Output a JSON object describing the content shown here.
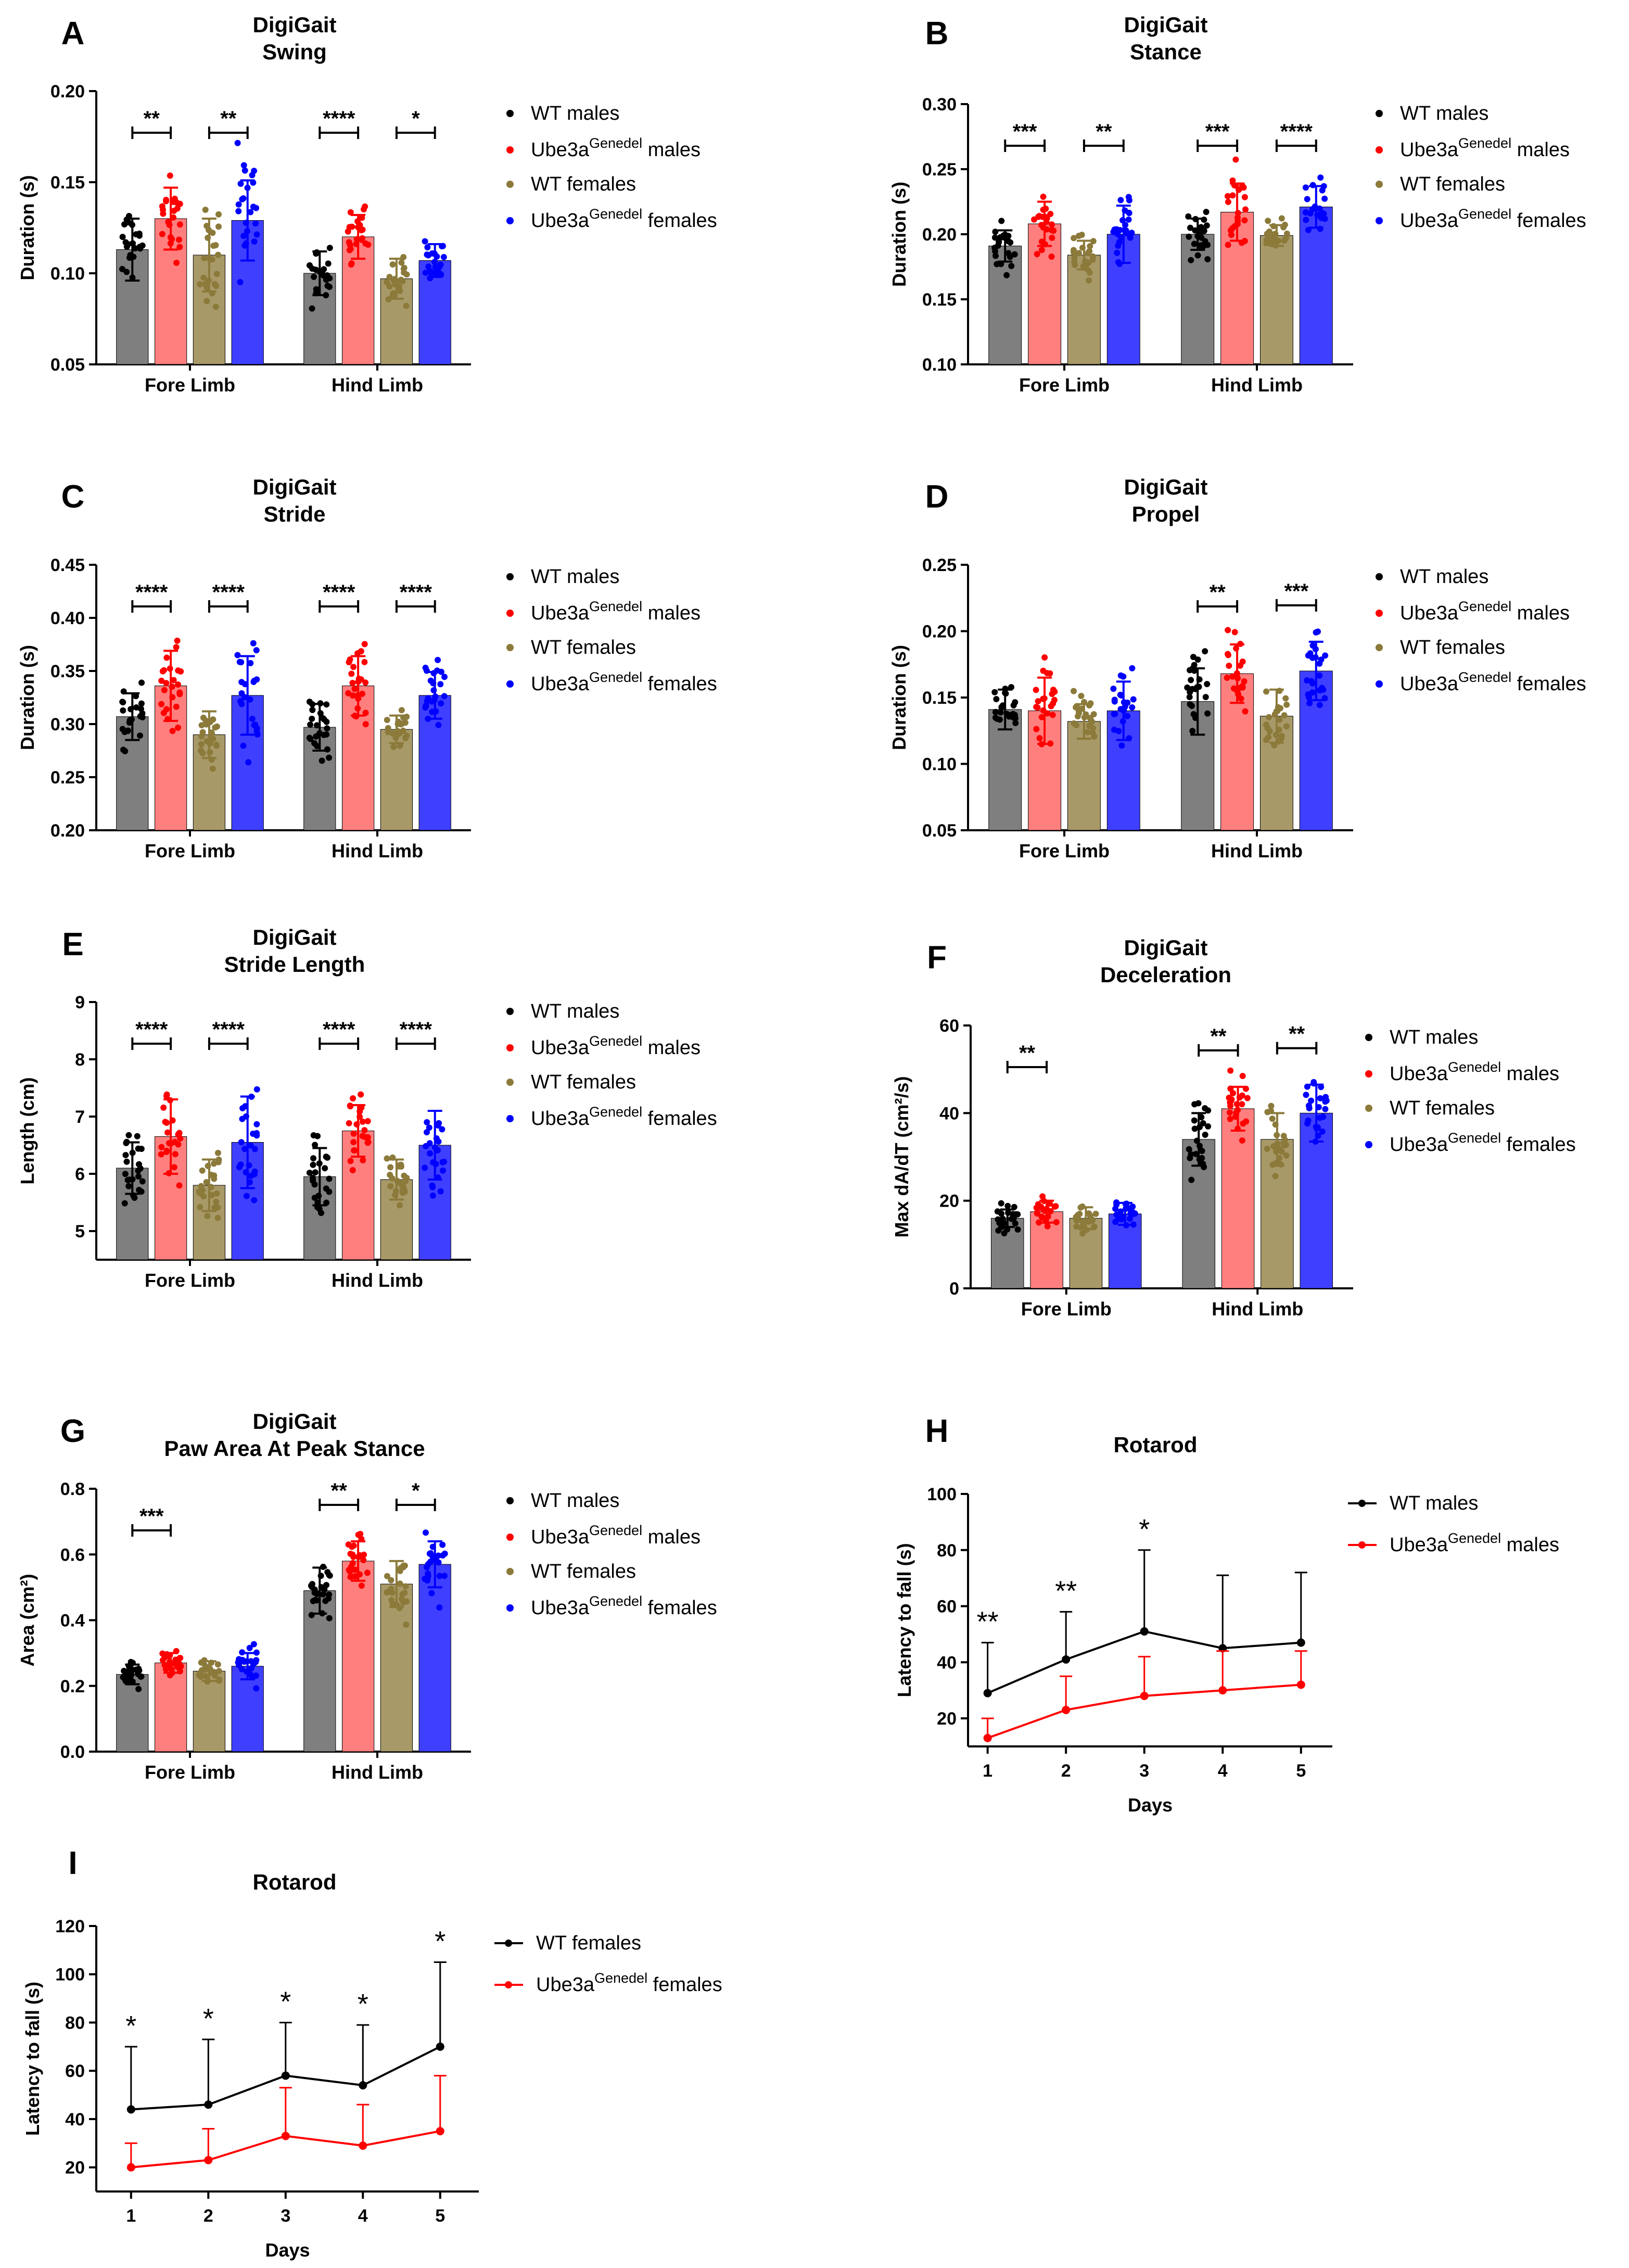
{
  "colors": {
    "wt_males": "#7f7f7f",
    "mut_males": "#ff7f7f",
    "wt_females": "#a89968",
    "mut_females": "#3f3fff",
    "wt_males_dot": "#000000",
    "mut_males_dot": "#ff0000",
    "wt_females_dot": "#8b7a3a",
    "mut_females_dot": "#0000ff",
    "line_black": "#000000",
    "line_red": "#ff0000"
  },
  "legend_labels": {
    "wt_males": "WT males",
    "mut_prefix": "Ube3a",
    "mut_sup": "Genedel",
    "males_suffix": " males",
    "females_suffix": " females",
    "wt_females": "WT females"
  },
  "chart_data": [
    {
      "id": "A",
      "panel_letter": "A",
      "type": "bar",
      "title": [
        "DigiGait",
        "Swing"
      ],
      "ylabel": "Duration (s)",
      "ylim": [
        0.05,
        0.2
      ],
      "yticks": [
        0.05,
        0.1,
        0.15,
        0.2
      ],
      "ytick_labels": [
        "0.05",
        "0.10",
        "0.15",
        "0.20"
      ],
      "categories": [
        "Fore Limb",
        "Hind Limb"
      ],
      "series": [
        {
          "name": "WT males",
          "key": "wt_males",
          "values": [
            0.113,
            0.1
          ],
          "errors": [
            0.017,
            0.012
          ]
        },
        {
          "name": "Ube3aGenedel males",
          "key": "mut_males",
          "values": [
            0.13,
            0.12
          ],
          "errors": [
            0.017,
            0.012
          ]
        },
        {
          "name": "WT females",
          "key": "wt_females",
          "values": [
            0.11,
            0.097
          ],
          "errors": [
            0.02,
            0.011
          ]
        },
        {
          "name": "Ube3aGenedel females",
          "key": "mut_females",
          "values": [
            0.129,
            0.107
          ],
          "errors": [
            0.022,
            0.009
          ]
        }
      ],
      "significance": [
        {
          "group": 0,
          "from": 0,
          "to": 1,
          "label": "**"
        },
        {
          "group": 0,
          "from": 2,
          "to": 3,
          "label": "**"
        },
        {
          "group": 1,
          "from": 0,
          "to": 1,
          "label": "****"
        },
        {
          "group": 1,
          "from": 2,
          "to": 3,
          "label": "*"
        }
      ]
    },
    {
      "id": "B",
      "panel_letter": "B",
      "type": "bar",
      "title": [
        "DigiGait",
        "Stance"
      ],
      "ylabel": "Duration (s)",
      "ylim": [
        0.1,
        0.3
      ],
      "yticks": [
        0.1,
        0.15,
        0.2,
        0.25,
        0.3
      ],
      "ytick_labels": [
        "0.10",
        "0.15",
        "0.20",
        "0.25",
        "0.30"
      ],
      "categories": [
        "Fore Limb",
        "Hind Limb"
      ],
      "series": [
        {
          "name": "WT males",
          "key": "wt_males",
          "values": [
            0.191,
            0.2
          ],
          "errors": [
            0.012,
            0.012
          ]
        },
        {
          "name": "Ube3aGenedel males",
          "key": "mut_males",
          "values": [
            0.208,
            0.217
          ],
          "errors": [
            0.017,
            0.022
          ]
        },
        {
          "name": "WT females",
          "key": "wt_females",
          "values": [
            0.184,
            0.199
          ],
          "errors": [
            0.011,
            0.008
          ]
        },
        {
          "name": "Ube3aGenedel females",
          "key": "mut_females",
          "values": [
            0.2,
            0.221
          ],
          "errors": [
            0.022,
            0.016
          ]
        }
      ],
      "significance": [
        {
          "group": 0,
          "from": 0,
          "to": 1,
          "label": "***"
        },
        {
          "group": 0,
          "from": 2,
          "to": 3,
          "label": "**"
        },
        {
          "group": 1,
          "from": 0,
          "to": 1,
          "label": "***"
        },
        {
          "group": 1,
          "from": 2,
          "to": 3,
          "label": "****"
        }
      ]
    },
    {
      "id": "C",
      "panel_letter": "C",
      "type": "bar",
      "title": [
        "DigiGait",
        "Stride"
      ],
      "ylabel": "Duration (s)",
      "ylim": [
        0.2,
        0.45
      ],
      "yticks": [
        0.2,
        0.25,
        0.3,
        0.35,
        0.4,
        0.45
      ],
      "ytick_labels": [
        "0.20",
        "0.25",
        "0.30",
        "0.35",
        "0.40",
        "0.45"
      ],
      "categories": [
        "Fore Limb",
        "Hind Limb"
      ],
      "series": [
        {
          "name": "WT males",
          "key": "wt_males",
          "values": [
            0.307,
            0.297
          ],
          "errors": [
            0.022,
            0.022
          ]
        },
        {
          "name": "Ube3aGenedel males",
          "key": "mut_males",
          "values": [
            0.336,
            0.336
          ],
          "errors": [
            0.033,
            0.028
          ]
        },
        {
          "name": "WT females",
          "key": "wt_females",
          "values": [
            0.29,
            0.295
          ],
          "errors": [
            0.022,
            0.013
          ]
        },
        {
          "name": "Ube3aGenedel females",
          "key": "mut_females",
          "values": [
            0.327,
            0.327
          ],
          "errors": [
            0.037,
            0.022
          ]
        }
      ],
      "significance": [
        {
          "group": 0,
          "from": 0,
          "to": 1,
          "label": "****"
        },
        {
          "group": 0,
          "from": 2,
          "to": 3,
          "label": "****"
        },
        {
          "group": 1,
          "from": 0,
          "to": 1,
          "label": "****"
        },
        {
          "group": 1,
          "from": 2,
          "to": 3,
          "label": "****"
        }
      ]
    },
    {
      "id": "D",
      "panel_letter": "D",
      "type": "bar",
      "title": [
        "DigiGait",
        "Propel"
      ],
      "ylabel": "Duration (s)",
      "ylim": [
        0.05,
        0.25
      ],
      "yticks": [
        0.05,
        0.1,
        0.15,
        0.2,
        0.25
      ],
      "ytick_labels": [
        "0.05",
        "0.10",
        "0.15",
        "0.20",
        "0.25"
      ],
      "categories": [
        "Fore Limb",
        "Hind Limb"
      ],
      "series": [
        {
          "name": "WT males",
          "key": "wt_males",
          "values": [
            0.141,
            0.147
          ],
          "errors": [
            0.015,
            0.025
          ]
        },
        {
          "name": "Ube3aGenedel males",
          "key": "mut_males",
          "values": [
            0.14,
            0.168
          ],
          "errors": [
            0.025,
            0.022
          ]
        },
        {
          "name": "WT females",
          "key": "wt_females",
          "values": [
            0.132,
            0.136
          ],
          "errors": [
            0.013,
            0.02
          ]
        },
        {
          "name": "Ube3aGenedel females",
          "key": "mut_females",
          "values": [
            0.14,
            0.17
          ],
          "errors": [
            0.022,
            0.022
          ]
        }
      ],
      "significance": [
        {
          "group": 1,
          "from": 0,
          "to": 1,
          "label": "**"
        },
        {
          "group": 1,
          "from": 2,
          "to": 3,
          "label": "***"
        }
      ]
    },
    {
      "id": "E",
      "panel_letter": "E",
      "type": "bar",
      "title": [
        "DigiGait",
        "Stride Length"
      ],
      "ylabel": "Length (cm)",
      "ylim": [
        4.5,
        9
      ],
      "yticks": [
        5,
        6,
        7,
        8,
        9
      ],
      "ytick_labels": [
        "5",
        "6",
        "7",
        "8",
        "9"
      ],
      "categories": [
        "Fore Limb",
        "Hind Limb"
      ],
      "series": [
        {
          "name": "WT males",
          "key": "wt_males",
          "values": [
            6.1,
            5.95
          ],
          "errors": [
            0.45,
            0.5
          ]
        },
        {
          "name": "Ube3aGenedel males",
          "key": "mut_males",
          "values": [
            6.65,
            6.75
          ],
          "errors": [
            0.65,
            0.45
          ]
        },
        {
          "name": "WT females",
          "key": "wt_females",
          "values": [
            5.8,
            5.9
          ],
          "errors": [
            0.45,
            0.35
          ]
        },
        {
          "name": "Ube3aGenedel females",
          "key": "mut_females",
          "values": [
            6.55,
            6.5
          ],
          "errors": [
            0.8,
            0.6
          ]
        }
      ],
      "significance": [
        {
          "group": 0,
          "from": 0,
          "to": 1,
          "label": "****"
        },
        {
          "group": 0,
          "from": 2,
          "to": 3,
          "label": "****"
        },
        {
          "group": 1,
          "from": 0,
          "to": 1,
          "label": "****"
        },
        {
          "group": 1,
          "from": 2,
          "to": 3,
          "label": "****"
        }
      ]
    },
    {
      "id": "F",
      "panel_letter": "F",
      "type": "bar",
      "title": [
        "DigiGait",
        "Deceleration"
      ],
      "ylabel": "Max dA/dT (cm²/s)",
      "ylim": [
        0,
        60
      ],
      "yticks": [
        0,
        20,
        40,
        60
      ],
      "ytick_labels": [
        "0",
        "20",
        "40",
        "60"
      ],
      "categories": [
        "Fore Limb",
        "Hind Limb"
      ],
      "series": [
        {
          "name": "WT males",
          "key": "wt_males",
          "values": [
            16,
            34
          ],
          "errors": [
            2,
            6
          ]
        },
        {
          "name": "Ube3aGenedel males",
          "key": "mut_males",
          "values": [
            17.5,
            41
          ],
          "errors": [
            2.5,
            5
          ]
        },
        {
          "name": "WT females",
          "key": "wt_females",
          "values": [
            16,
            34
          ],
          "errors": [
            2.5,
            6
          ]
        },
        {
          "name": "Ube3aGenedel females",
          "key": "mut_females",
          "values": [
            17,
            40
          ],
          "errors": [
            2.5,
            6.5
          ]
        }
      ],
      "significance": [
        {
          "group": 0,
          "from": 0,
          "to": 1,
          "label": "**"
        },
        {
          "group": 1,
          "from": 0,
          "to": 1,
          "label": "**"
        },
        {
          "group": 1,
          "from": 2,
          "to": 3,
          "label": "**"
        }
      ]
    },
    {
      "id": "G",
      "panel_letter": "G",
      "type": "bar",
      "title": [
        "DigiGait",
        "Paw Area At Peak Stance"
      ],
      "ylabel": "Area (cm²)",
      "ylim": [
        0,
        0.8
      ],
      "yticks": [
        0,
        0.2,
        0.4,
        0.6,
        0.8
      ],
      "ytick_labels": [
        "0.0",
        "0.2",
        "0.4",
        "0.6",
        "0.8"
      ],
      "categories": [
        "Fore Limb",
        "Hind Limb"
      ],
      "series": [
        {
          "name": "WT males",
          "key": "wt_males",
          "values": [
            0.235,
            0.49
          ],
          "errors": [
            0.03,
            0.07
          ]
        },
        {
          "name": "Ube3aGenedel males",
          "key": "mut_males",
          "values": [
            0.27,
            0.58
          ],
          "errors": [
            0.03,
            0.06
          ]
        },
        {
          "name": "WT females",
          "key": "wt_females",
          "values": [
            0.245,
            0.51
          ],
          "errors": [
            0.03,
            0.07
          ]
        },
        {
          "name": "Ube3aGenedel females",
          "key": "mut_females",
          "values": [
            0.26,
            0.57
          ],
          "errors": [
            0.04,
            0.07
          ]
        }
      ],
      "significance": [
        {
          "group": 0,
          "from": 0,
          "to": 1,
          "label": "***"
        },
        {
          "group": 1,
          "from": 0,
          "to": 1,
          "label": "**"
        },
        {
          "group": 1,
          "from": 2,
          "to": 3,
          "label": "*"
        }
      ]
    },
    {
      "id": "H",
      "panel_letter": "H",
      "type": "line",
      "title": [
        "Rotarod"
      ],
      "ylabel": "Latency to fall (s)",
      "xlabel": "Days",
      "ylim": [
        10,
        100
      ],
      "xlim": [
        0.75,
        5.4
      ],
      "yticks": [
        20,
        40,
        60,
        80,
        100
      ],
      "ytick_labels": [
        "20",
        "40",
        "60",
        "80",
        "100"
      ],
      "x": [
        1,
        2,
        3,
        4,
        5
      ],
      "xtick_labels": [
        "1",
        "2",
        "3",
        "4",
        "5"
      ],
      "series": [
        {
          "name": "WT males",
          "color_key": "line_black",
          "values": [
            29,
            41,
            51,
            45,
            47
          ],
          "errors": [
            18,
            17,
            29,
            26,
            25
          ]
        },
        {
          "name": "Ube3aGenedel males",
          "color_key": "line_red",
          "values": [
            13,
            23,
            28,
            30,
            32
          ],
          "errors": [
            7,
            12,
            14,
            14,
            12
          ]
        }
      ],
      "annotations": [
        {
          "x": 1,
          "value": 47,
          "label": "**"
        },
        {
          "x": 2,
          "value": 58,
          "label": "**"
        },
        {
          "x": 3,
          "value": 80,
          "label": "*"
        }
      ]
    },
    {
      "id": "I",
      "panel_letter": "I",
      "type": "line",
      "title": [
        "Rotarod"
      ],
      "ylabel": "Latency to fall (s)",
      "xlabel": "Days",
      "ylim": [
        10,
        120
      ],
      "xlim": [
        0.55,
        5.5
      ],
      "yticks": [
        20,
        40,
        60,
        80,
        100,
        120
      ],
      "ytick_labels": [
        "20",
        "40",
        "60",
        "80",
        "100",
        "120"
      ],
      "x": [
        1,
        2,
        3,
        4,
        5
      ],
      "xtick_labels": [
        "1",
        "2",
        "3",
        "4",
        "5"
      ],
      "series": [
        {
          "name": "WT females",
          "color_key": "line_black",
          "values": [
            44,
            46,
            58,
            54,
            70
          ],
          "errors": [
            26,
            27,
            22,
            25,
            35
          ]
        },
        {
          "name": "Ube3aGenedel females",
          "color_key": "line_red",
          "values": [
            20,
            23,
            33,
            29,
            35
          ],
          "errors": [
            10,
            13,
            20,
            17,
            23
          ]
        }
      ],
      "annotations": [
        {
          "x": 1,
          "value": 70,
          "label": "*"
        },
        {
          "x": 2,
          "value": 73,
          "label": "*"
        },
        {
          "x": 3,
          "value": 80,
          "label": "*"
        },
        {
          "x": 4,
          "value": 79,
          "label": "*"
        },
        {
          "x": 5,
          "value": 105,
          "label": "*"
        }
      ]
    }
  ]
}
